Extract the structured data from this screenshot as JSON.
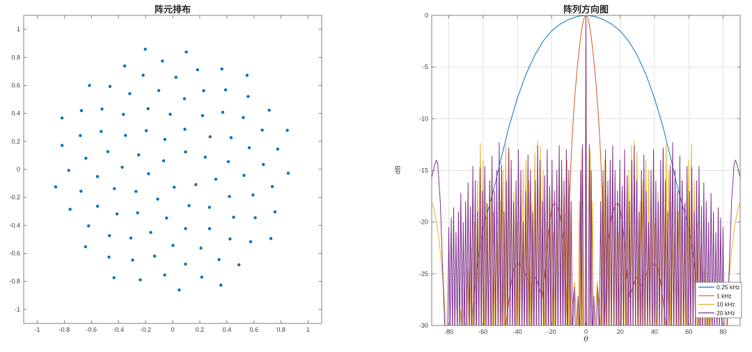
{
  "window": {
    "background": "#ffffff"
  },
  "chart_data": [
    {
      "type": "scatter",
      "title": "阵元排布",
      "xlabel": "",
      "ylabel": "",
      "xlim": [
        -1.1,
        1.1
      ],
      "ylim": [
        -1.1,
        1.1
      ],
      "xticks": [
        -1,
        -0.8,
        -0.6,
        -0.4,
        -0.2,
        0,
        0.2,
        0.4,
        0.6,
        0.8,
        1
      ],
      "xtick_labels": [
        "-1",
        "-0.8",
        "-0.6",
        "-0.4",
        "-0.2",
        "0",
        "0.2",
        "0.4",
        "0.6",
        "0.8",
        "1"
      ],
      "yticks": [
        -1,
        -0.8,
        -0.6,
        -0.4,
        -0.2,
        0,
        0.2,
        0.4,
        0.6,
        0.8,
        1
      ],
      "ytick_labels": [
        "-1",
        "-0.8",
        "-0.6",
        "-0.4",
        "-0.2",
        "0",
        "0.2",
        "0.4",
        "0.6",
        "0.8",
        "1"
      ],
      "grid": false,
      "marker_color": "#0072BD",
      "marker_radius_px": 2.2,
      "pattern": "fermat-spiral-sunflower-array",
      "generator": {
        "n": 99,
        "max_radius": 0.9,
        "radius_rule": "r_k = max_radius*sqrt(k/n)",
        "golden_angle_deg": 137.5078
      }
    },
    {
      "type": "line",
      "title": "阵列方向图",
      "xlabel": "θ",
      "ylabel": "dB",
      "xlim": [
        -90,
        90
      ],
      "ylim": [
        -30,
        0
      ],
      "xticks": [
        -80,
        -60,
        -40,
        -20,
        0,
        20,
        40,
        60,
        80
      ],
      "xtick_labels": [
        "-80",
        "-60",
        "-40",
        "-20",
        "0",
        "20",
        "40",
        "60",
        "80"
      ],
      "yticks": [
        0,
        -5,
        -10,
        -15,
        -20,
        -25,
        -30
      ],
      "ytick_labels": [
        "0",
        "-5",
        "-10",
        "-15",
        "-20",
        "-25",
        "-30"
      ],
      "grid": true,
      "grid_color": "#e2e2e2",
      "legend": {
        "position": "bottom-right"
      },
      "series": [
        {
          "name": "0.25 kHz",
          "color": "#0072BD",
          "mirror": true,
          "segments": [
            [
              [
                0,
                0
              ],
              [
                5,
                -0.1
              ],
              [
                10,
                -0.4
              ],
              [
                15,
                -0.85
              ],
              [
                20,
                -1.5
              ],
              [
                25,
                -2.5
              ],
              [
                30,
                -3.9
              ],
              [
                35,
                -5.7
              ],
              [
                40,
                -8.0
              ],
              [
                45,
                -10.8
              ],
              [
                50,
                -14.2
              ],
              [
                53,
                -16.3
              ],
              [
                56,
                -18.2
              ],
              [
                58,
                -19.3
              ],
              [
                60,
                -20.7
              ],
              [
                62,
                -22.5
              ],
              [
                64,
                -25.2
              ],
              [
                65.5,
                -27.3
              ],
              [
                66.8,
                -30.6
              ]
            ]
          ],
          "spikes": []
        },
        {
          "name": "1 kHz",
          "color": "#D95319",
          "mirror": true,
          "segments": [
            [
              [
                0,
                0
              ],
              [
                1,
                -0.2
              ],
              [
                2,
                -0.9
              ],
              [
                3,
                -2.0
              ],
              [
                4,
                -3.4
              ],
              [
                5,
                -5.0
              ],
              [
                6,
                -6.9
              ],
              [
                7,
                -9.0
              ],
              [
                8,
                -11.7
              ],
              [
                8.8,
                -14.5
              ],
              [
                9.4,
                -17.5
              ],
              [
                9.9,
                -21
              ],
              [
                10.2,
                -25
              ],
              [
                10.4,
                -30.6
              ]
            ],
            [
              [
                10.8,
                -30.6
              ],
              [
                11.5,
                -26
              ],
              [
                13,
                -21.8
              ],
              [
                15,
                -19.4
              ],
              [
                17,
                -18.4
              ],
              [
                18.6,
                -18.15
              ],
              [
                20,
                -18.7
              ],
              [
                22,
                -21.2
              ],
              [
                24,
                -25.2
              ],
              [
                25.5,
                -27.3
              ],
              [
                27,
                -26.5
              ],
              [
                28.5,
                -25.7
              ],
              [
                30,
                -25.3
              ],
              [
                31.5,
                -26.0
              ],
              [
                32.5,
                -26.2
              ],
              [
                34,
                -25.5
              ],
              [
                36,
                -24.7
              ],
              [
                38,
                -24.2
              ],
              [
                40,
                -24.0
              ],
              [
                42,
                -24.5
              ],
              [
                43.5,
                -25.7
              ],
              [
                45,
                -27.6
              ],
              [
                46.5,
                -29.6
              ],
              [
                47.2,
                -30.6
              ]
            ]
          ],
          "spikes": []
        },
        {
          "name": "10 kHz",
          "color": "#EDB120",
          "mirror": true,
          "segments": [
            [
              [
                81.5,
                -30.6
              ],
              [
                83,
                -26.5
              ],
              [
                85,
                -22.8
              ],
              [
                87,
                -20.2
              ],
              [
                89,
                -18.5
              ],
              [
                90,
                -18.1
              ]
            ],
            [
              [
                5.2,
                -30.6
              ],
              [
                6.5,
                -25.8
              ],
              [
                8,
                -28.2
              ],
              [
                8.6,
                -30.6
              ]
            ]
          ],
          "spikes": [
            [
              0,
              0,
              0.5
            ],
            [
              2.6,
              -13,
              0.7
            ],
            [
              3.8,
              -18,
              0.7
            ],
            [
              9.5,
              -16.5,
              0.8
            ],
            [
              11,
              -14,
              0.8
            ],
            [
              12.5,
              -17.5,
              0.8
            ],
            [
              14,
              -15.8,
              0.8
            ],
            [
              15.6,
              -13.6,
              0.8
            ],
            [
              17.2,
              -19,
              0.8
            ],
            [
              19,
              -21,
              0.8
            ],
            [
              21,
              -17,
              0.9
            ],
            [
              23,
              -20,
              0.9
            ],
            [
              25,
              -15,
              0.9
            ],
            [
              26.6,
              -12.6,
              0.9
            ],
            [
              28.2,
              -12.1,
              0.9
            ],
            [
              29.8,
              -13.2,
              0.9
            ],
            [
              31.5,
              -18,
              0.9
            ],
            [
              33.2,
              -16,
              0.9
            ],
            [
              35,
              -14,
              0.9
            ],
            [
              36.6,
              -15,
              0.9
            ],
            [
              38.2,
              -18.5,
              0.9
            ],
            [
              40,
              -20,
              0.9
            ],
            [
              42,
              -17,
              0.9
            ],
            [
              43.6,
              -19,
              0.9
            ],
            [
              45.2,
              -13,
              0.9
            ],
            [
              46.8,
              -12.5,
              0.9
            ],
            [
              48.4,
              -15,
              0.9
            ],
            [
              50.2,
              -18,
              0.9
            ],
            [
              52,
              -21,
              0.9
            ],
            [
              54,
              -19,
              0.9
            ],
            [
              56,
              -16,
              0.9
            ],
            [
              58,
              -18,
              0.9
            ],
            [
              60,
              -14,
              0.9
            ],
            [
              61.6,
              -12.4,
              0.9
            ],
            [
              63.2,
              -16,
              0.9
            ],
            [
              65,
              -20,
              0.9
            ],
            [
              67,
              -22.5,
              0.9
            ],
            [
              69,
              -24.5,
              0.9
            ],
            [
              71,
              -26.5,
              0.9
            ],
            [
              73,
              -28.5,
              0.9
            ]
          ]
        },
        {
          "name": "20 kHz",
          "color": "#7E2F8E",
          "mirror": true,
          "segments": [
            [
              [
                82.3,
                -30.6
              ],
              [
                83.5,
                -25
              ],
              [
                85,
                -18
              ],
              [
                86.5,
                -14.3
              ],
              [
                87.3,
                -14.0
              ],
              [
                88.5,
                -14.6
              ],
              [
                90,
                -15.7
              ]
            ],
            [
              [
                3.9,
                -30.6
              ],
              [
                4.6,
                -27.2
              ],
              [
                5.4,
                -30.6
              ]
            ],
            [
              [
                6.1,
                -30.6
              ],
              [
                6.9,
                -26.3
              ],
              [
                7.7,
                -30.6
              ]
            ]
          ],
          "spikes": [
            [
              0,
              0,
              0.4
            ],
            [
              2,
              -12.5,
              0.6
            ],
            [
              3.1,
              -15,
              0.6
            ],
            [
              8.6,
              -18,
              0.7
            ],
            [
              10,
              -15,
              0.7
            ],
            [
              11.4,
              -13,
              0.7
            ],
            [
              12.8,
              -16,
              0.7
            ],
            [
              14.2,
              -14,
              0.7
            ],
            [
              15.6,
              -12.6,
              0.7
            ],
            [
              17,
              -15,
              0.7
            ],
            [
              18.4,
              -17,
              0.7
            ],
            [
              19.8,
              -14,
              0.7
            ],
            [
              21.2,
              -16.5,
              0.7
            ],
            [
              22.6,
              -13,
              0.7
            ],
            [
              24,
              -15.5,
              0.7
            ],
            [
              25.4,
              -18,
              0.7
            ],
            [
              26.8,
              -14,
              0.7
            ],
            [
              28.2,
              -12.6,
              0.7
            ],
            [
              29.6,
              -16,
              0.7
            ],
            [
              31,
              -19,
              0.7
            ],
            [
              32.4,
              -15,
              0.7
            ],
            [
              33.8,
              -13.5,
              0.7
            ],
            [
              35.2,
              -17,
              0.7
            ],
            [
              36.6,
              -20,
              0.7
            ],
            [
              38,
              -15,
              0.7
            ],
            [
              39.4,
              -13,
              0.7
            ],
            [
              40.8,
              -16,
              0.7
            ],
            [
              42.2,
              -18,
              0.7
            ],
            [
              43.6,
              -14,
              0.7
            ],
            [
              45,
              -12.8,
              0.7
            ],
            [
              46.4,
              -16,
              0.7
            ],
            [
              47.8,
              -19,
              0.7
            ],
            [
              49.2,
              -14.5,
              0.7
            ],
            [
              50.6,
              -12.3,
              0.7
            ],
            [
              52,
              -15,
              0.7
            ],
            [
              53.4,
              -17,
              0.7
            ],
            [
              54.8,
              -13.6,
              0.7
            ],
            [
              56.2,
              -16,
              0.7
            ],
            [
              57.6,
              -18.2,
              0.7
            ],
            [
              59,
              -14.6,
              0.7
            ],
            [
              60.4,
              -17,
              0.7
            ],
            [
              61.8,
              -14.7,
              0.7
            ],
            [
              63.2,
              -19,
              0.7
            ],
            [
              64.6,
              -16,
              0.7
            ],
            [
              66,
              -14.6,
              0.7
            ],
            [
              67.4,
              -18.5,
              0.7
            ],
            [
              68.8,
              -16.2,
              0.7
            ],
            [
              70.2,
              -18,
              0.7
            ],
            [
              71.6,
              -20,
              0.7
            ],
            [
              73,
              -17.2,
              0.7
            ],
            [
              74.4,
              -19,
              0.7
            ],
            [
              75.8,
              -21,
              0.7
            ],
            [
              77.2,
              -18.6,
              0.7
            ],
            [
              78.6,
              -19.6,
              0.7
            ],
            [
              80,
              -20.5,
              0.7
            ]
          ]
        }
      ]
    }
  ],
  "style": {
    "axis_color": "#7f7f7f",
    "tick_label_color": "#3c3c3c",
    "legend_border_color": "#8c8c8c",
    "legend_background": "#ffffff"
  }
}
